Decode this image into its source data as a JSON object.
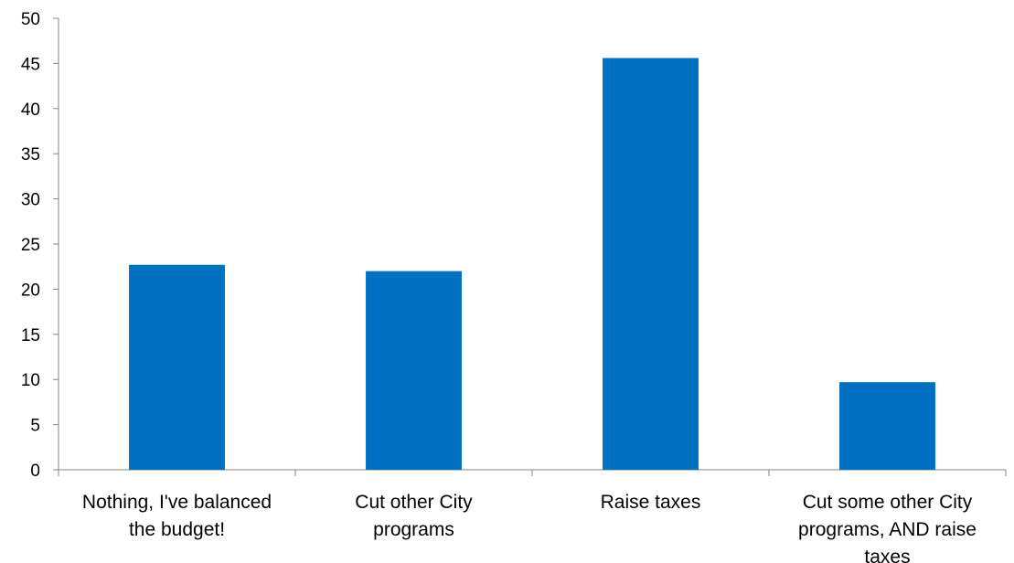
{
  "chart_data": {
    "type": "bar",
    "title": "",
    "xlabel": "",
    "ylabel": "",
    "categories": [
      [
        "Nothing, I've balanced",
        "the budget!"
      ],
      [
        "Cut other City",
        "programs"
      ],
      [
        "Raise taxes"
      ],
      [
        "Cut some other City",
        "programs, AND raise",
        "taxes"
      ]
    ],
    "values": [
      22.7,
      22.0,
      45.6,
      9.7
    ],
    "ylim": [
      0,
      50
    ],
    "yticks": [
      "0",
      "5",
      "10",
      "15",
      "20",
      "25",
      "30",
      "35",
      "40",
      "45",
      "50"
    ],
    "grid": false,
    "legend": "none",
    "bar_color": "#0070C0",
    "axis_color": "#868686"
  }
}
